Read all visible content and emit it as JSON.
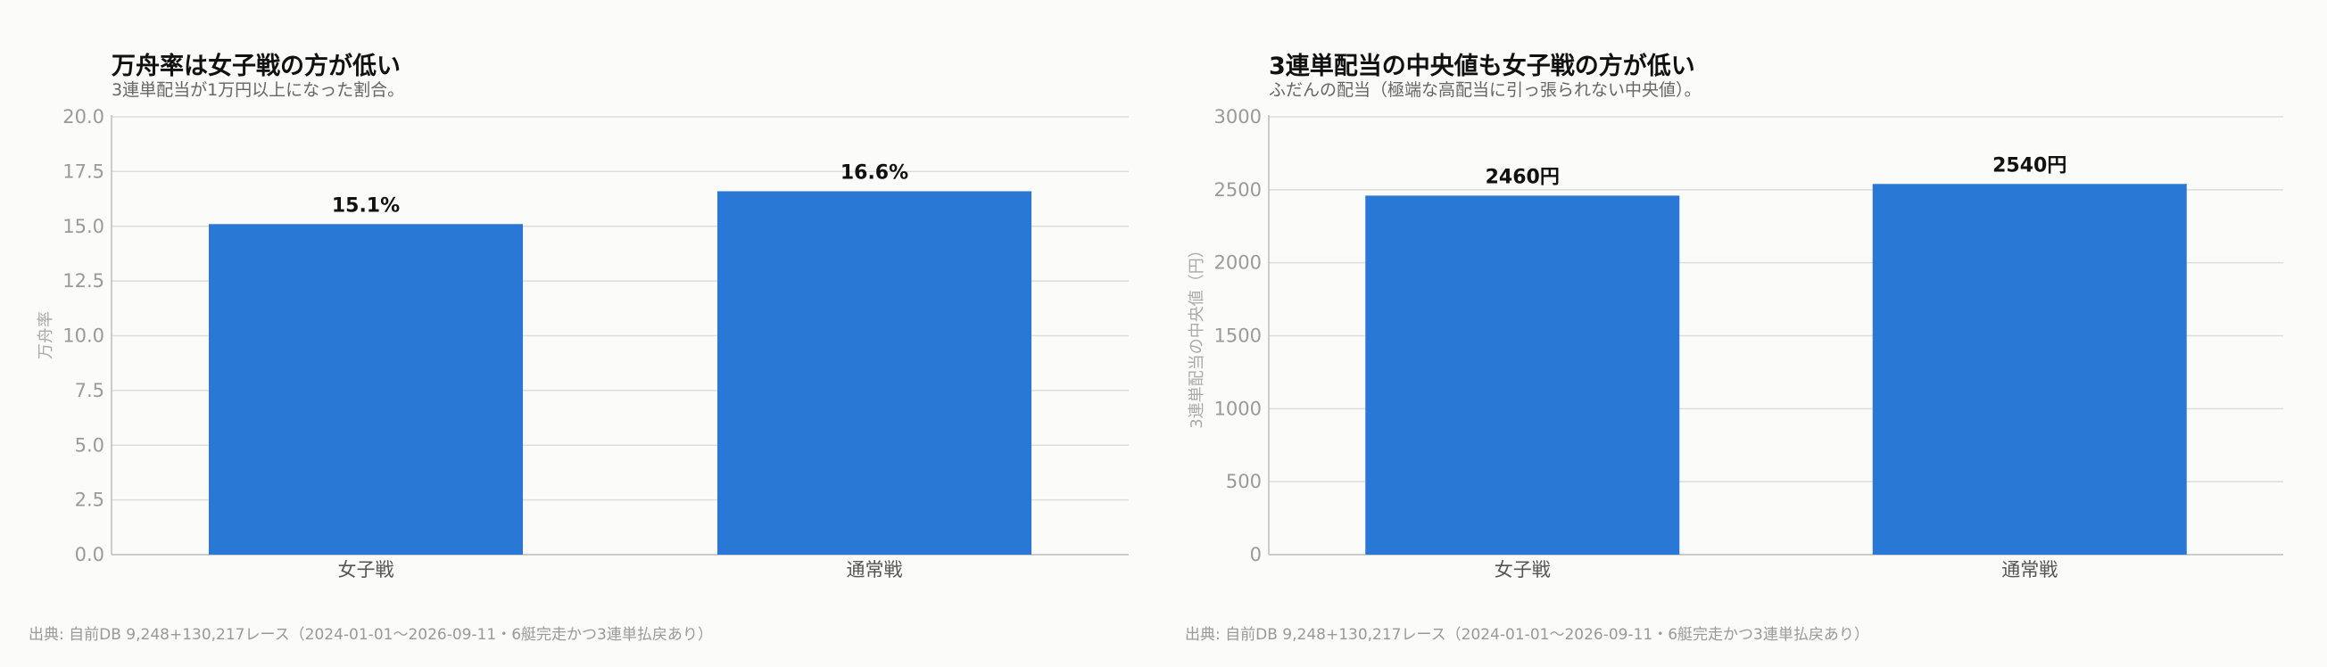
{
  "colors": {
    "bar": "#2a78d6",
    "grid": "#dddddd",
    "axis": "#bdbdbd"
  },
  "chart_data": [
    {
      "type": "bar",
      "title": "万舟率は女子戦の方が低い",
      "subtitle": "3連単配当が1万円以上になった割合。",
      "ylabel": "万舟率",
      "xlabel": "",
      "categories": [
        "女子戦",
        "通常戦"
      ],
      "values": [
        15.1,
        16.6
      ],
      "data_labels": [
        "15.1%",
        "16.6%"
      ],
      "ylim": [
        0,
        20
      ],
      "yticks": [
        "0.0",
        "2.5",
        "5.0",
        "7.5",
        "10.0",
        "12.5",
        "15.0",
        "17.5",
        "20.0"
      ],
      "grid": true,
      "source": "出典: 自前DB 9,248+130,217レース（2024-01-01〜2026-09-11・6艇完走かつ3連単払戻あり）"
    },
    {
      "type": "bar",
      "title": "3連単配当の中央値も女子戦の方が低い",
      "subtitle": "ふだんの配当（極端な高配当に引っ張られない中央値）。",
      "ylabel": "3連単配当の中央値（円）",
      "xlabel": "",
      "categories": [
        "女子戦",
        "通常戦"
      ],
      "values": [
        2460,
        2540
      ],
      "data_labels": [
        "2460円",
        "2540円"
      ],
      "ylim": [
        0,
        3000
      ],
      "yticks": [
        "0",
        "500",
        "1000",
        "1500",
        "2000",
        "2500",
        "3000"
      ],
      "grid": true,
      "source": "出典: 自前DB 9,248+130,217レース（2024-01-01〜2026-09-11・6艇完走かつ3連単払戻あり）"
    }
  ]
}
